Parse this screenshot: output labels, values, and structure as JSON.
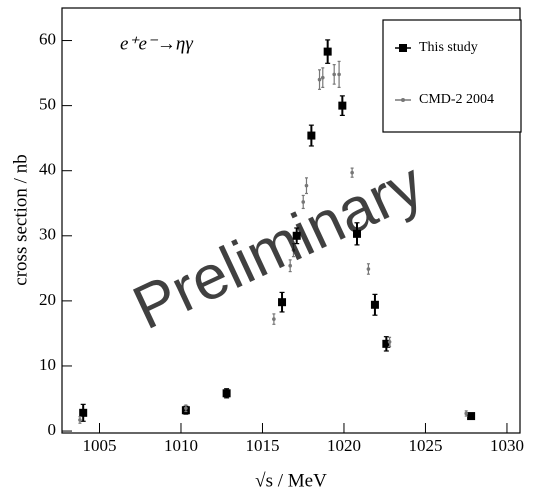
{
  "chart_data": {
    "type": "scatter",
    "annotation": "e⁺e⁻→ηγ",
    "watermark": "Preliminary",
    "x_label": "√s / MeV",
    "y_label": "cross section / nb",
    "xlim": [
      1002.7,
      1030.8
    ],
    "ylim": [
      -0.3,
      65
    ],
    "xticks": [
      1005,
      1010,
      1015,
      1020,
      1025,
      1030
    ],
    "yticks": [
      0,
      10,
      20,
      30,
      40,
      50,
      60
    ],
    "legend": "upper right",
    "series": [
      {
        "name": "This study",
        "color": "#000000",
        "marker": "square",
        "x": [
          1004.0,
          1010.3,
          1012.8,
          1016.2,
          1017.1,
          1018.0,
          1019.0,
          1019.9,
          1020.8,
          1021.9,
          1022.6,
          1027.8
        ],
        "values": [
          2.8,
          3.2,
          5.8,
          19.8,
          30.0,
          45.4,
          58.3,
          50.0,
          30.3,
          19.4,
          13.4,
          2.3
        ],
        "errors": [
          1.3,
          0.6,
          0.7,
          1.5,
          1.2,
          1.6,
          1.8,
          1.5,
          1.7,
          1.6,
          1.1,
          0.4
        ]
      },
      {
        "name": "CMD-2 2004",
        "color": "#777777",
        "marker": "circle",
        "x": [
          1003.8,
          1010.3,
          1015.7,
          1016.7,
          1016.9,
          1017.5,
          1017.7,
          1018.5,
          1018.7,
          1019.4,
          1019.7,
          1020.5,
          1021.5,
          1022.8,
          1027.5
        ],
        "values": [
          1.7,
          3.5,
          17.2,
          25.4,
          27.8,
          35.2,
          37.7,
          54.0,
          54.3,
          54.8,
          54.8,
          39.7,
          24.9,
          13.7,
          2.7
        ],
        "errors": [
          0.5,
          0.5,
          0.8,
          0.9,
          1.0,
          1.0,
          1.2,
          1.5,
          1.5,
          1.5,
          2.0,
          0.7,
          0.8,
          0.7,
          0.4
        ]
      }
    ]
  }
}
